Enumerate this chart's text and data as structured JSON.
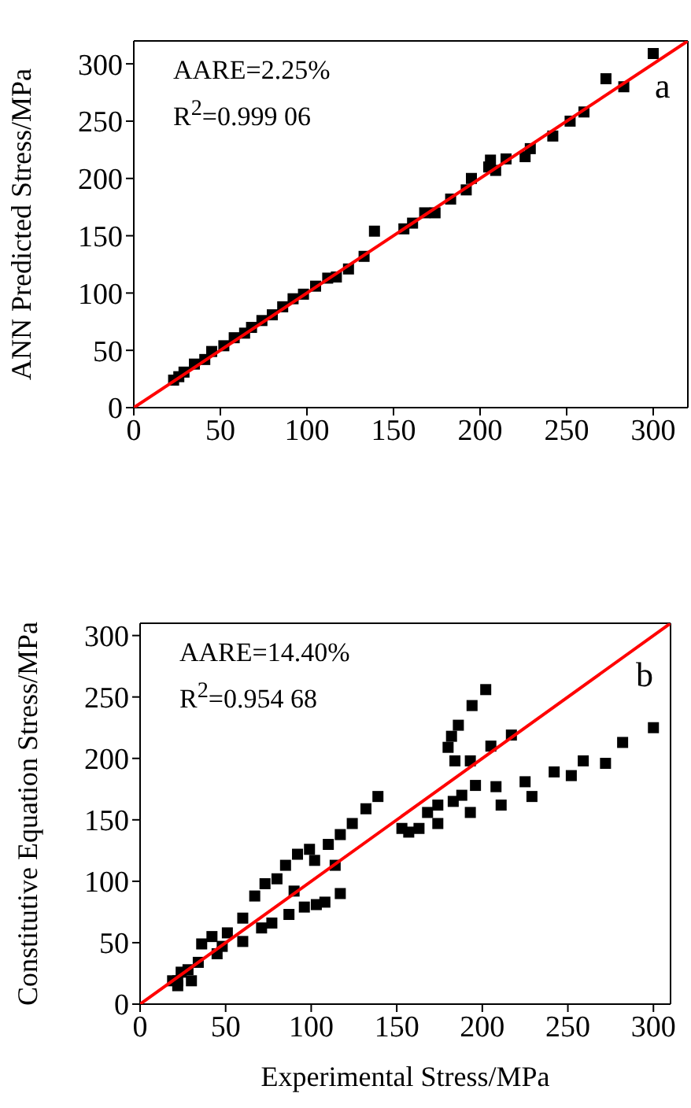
{
  "chart_data": [
    {
      "type": "scatter",
      "ylabel": "ANN Predicted Stress/MPa",
      "annotations": [
        "AARE=2.25%",
        "R$^{2}$=0.999 06",
        "a"
      ],
      "xlim": [
        0,
        320
      ],
      "ylim": [
        0,
        320
      ],
      "xticks": [
        0,
        50,
        100,
        150,
        200,
        250,
        300
      ],
      "yticks": [
        0,
        50,
        100,
        150,
        200,
        250,
        300
      ],
      "series": [
        {
          "color": "#000000",
          "marker": "square",
          "x": [
            23,
            26,
            29,
            35,
            41,
            45,
            52,
            58,
            64,
            68,
            74,
            80,
            86,
            92,
            98,
            105,
            112,
            117,
            124,
            133,
            139,
            156,
            161,
            168,
            174,
            183,
            192,
            195,
            205,
            206,
            209,
            215,
            226,
            229,
            242,
            252,
            260,
            272.7,
            283,
            300
          ],
          "values": [
            24,
            27,
            31,
            38,
            42,
            49,
            54,
            61,
            65,
            70,
            76,
            81,
            88,
            95,
            99,
            106,
            113,
            114,
            121,
            132,
            154,
            156,
            161,
            170,
            170,
            182,
            190,
            200,
            210,
            216,
            207,
            217,
            219,
            226,
            237,
            250,
            258,
            287,
            280,
            309
          ]
        },
        {
          "type": "line",
          "color": "#ff0000",
          "marker": "none",
          "x": [
            0,
            320
          ],
          "values": [
            0,
            320
          ]
        }
      ]
    },
    {
      "type": "scatter",
      "ylabel": "Constitutive Equation Stress/MPa",
      "xlabel": "Experimental Stress/MPa",
      "annotations": [
        "AARE=14.40%",
        "R$^{2}$=0.954 68",
        "b"
      ],
      "xlim": [
        0,
        310
      ],
      "ylim": [
        0,
        310
      ],
      "xticks": [
        0,
        50,
        100,
        150,
        200,
        250,
        300
      ],
      "yticks": [
        0,
        50,
        100,
        150,
        200,
        250,
        300
      ],
      "series": [
        {
          "color": "#000000",
          "marker": "square",
          "x": [
            19,
            22,
            22,
            24,
            28,
            30,
            34,
            36,
            42,
            45,
            48,
            51,
            60,
            60,
            67,
            71,
            73,
            77,
            80,
            85,
            87,
            90,
            92,
            96,
            99,
            102,
            103,
            108,
            110,
            114,
            117,
            117,
            124,
            132,
            139,
            153,
            157,
            163,
            168,
            174,
            174,
            180,
            182,
            183,
            184,
            186,
            188,
            193,
            193,
            194,
            196,
            202,
            205,
            208,
            211,
            217,
            225,
            229,
            242,
            252,
            259,
            272,
            282,
            300
          ],
          "values": [
            19,
            15,
            19,
            26,
            28,
            19,
            34,
            49,
            55,
            41,
            47,
            58,
            51,
            70,
            88,
            62,
            98,
            66,
            102,
            113,
            73,
            92,
            122,
            79,
            126,
            117,
            81,
            83,
            130,
            113,
            138,
            90,
            147,
            159,
            169,
            143,
            140,
            143,
            156,
            162,
            147,
            209,
            218,
            165,
            198,
            227,
            170,
            156,
            198,
            243,
            178,
            256,
            210,
            177,
            162,
            219,
            181,
            169,
            189,
            186,
            198,
            196,
            213,
            225
          ]
        },
        {
          "type": "line",
          "color": "#ff0000",
          "marker": "none",
          "x": [
            0,
            310
          ],
          "values": [
            0,
            310
          ]
        }
      ]
    }
  ]
}
